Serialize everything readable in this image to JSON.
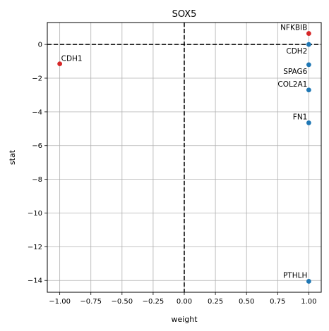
{
  "chart_data": {
    "type": "scatter",
    "title": "SOX5",
    "xlabel": "weight",
    "ylabel": "stat",
    "xlim": [
      -1.1,
      1.1
    ],
    "ylim": [
      -14.7,
      1.3
    ],
    "xticks": [
      -1.0,
      -0.75,
      -0.5,
      -0.25,
      0.0,
      0.25,
      0.5,
      0.75,
      1.0
    ],
    "xtick_labels": [
      "−1.00",
      "−0.75",
      "−0.50",
      "−0.25",
      "0.00",
      "0.25",
      "0.50",
      "0.75",
      "1.00"
    ],
    "yticks": [
      0,
      -2,
      -4,
      -6,
      -8,
      -10,
      -12,
      -14
    ],
    "ytick_labels": [
      "0",
      "−2",
      "−4",
      "−6",
      "−8",
      "−10",
      "−12",
      "−14"
    ],
    "grid": true,
    "reference_lines": {
      "x": 0,
      "y": 0,
      "style": "dashed",
      "color": "#000000"
    },
    "colors": {
      "positive": "#d62728",
      "negative": "#1f77b4"
    },
    "points": [
      {
        "label": "NFKBIB",
        "x": 1.0,
        "y": 0.65,
        "color": "positive",
        "label_side": "left-above"
      },
      {
        "label": "CDH2",
        "x": 1.0,
        "y": 0.0,
        "color": "negative",
        "label_side": "left-below"
      },
      {
        "label": "SPAG6",
        "x": 1.0,
        "y": -1.2,
        "color": "negative",
        "label_side": "left-below"
      },
      {
        "label": "COL2A1",
        "x": 1.0,
        "y": -2.7,
        "color": "negative",
        "label_side": "left-above"
      },
      {
        "label": "FN1",
        "x": 1.0,
        "y": -4.65,
        "color": "negative",
        "label_side": "left-above"
      },
      {
        "label": "PTHLH",
        "x": 1.0,
        "y": -14.05,
        "color": "negative",
        "label_side": "left-above"
      },
      {
        "label": "CDH1",
        "x": -1.0,
        "y": -1.15,
        "color": "positive",
        "label_side": "right-above"
      }
    ]
  }
}
